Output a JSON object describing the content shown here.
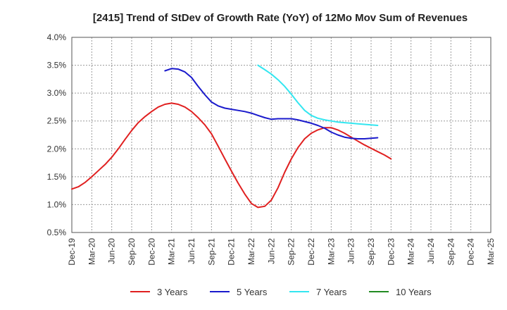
{
  "chart_data": {
    "type": "line",
    "title": "[2415]  Trend of StDev of Growth Rate (YoY) of 12Mo Mov Sum of Revenues",
    "xlabel": "",
    "ylabel": "",
    "ylim": [
      0.5,
      4.0
    ],
    "yticks": [
      "0.5%",
      "1.0%",
      "1.5%",
      "2.0%",
      "2.5%",
      "3.0%",
      "3.5%",
      "4.0%"
    ],
    "ytick_values": [
      0.5,
      1.0,
      1.5,
      2.0,
      2.5,
      3.0,
      3.5,
      4.0
    ],
    "x_categories": [
      "Dec-19",
      "Mar-20",
      "Jun-20",
      "Sep-20",
      "Dec-20",
      "Mar-21",
      "Jun-21",
      "Sep-21",
      "Dec-21",
      "Mar-22",
      "Jun-22",
      "Sep-22",
      "Dec-22",
      "Mar-23",
      "Jun-23",
      "Sep-23",
      "Dec-23",
      "Mar-24",
      "Jun-24",
      "Sep-24",
      "Dec-24",
      "Mar-25"
    ],
    "grid": true,
    "legend_position": "bottom",
    "series": [
      {
        "name": "3 Years",
        "color": "#e02020",
        "points": [
          [
            0,
            1.28
          ],
          [
            0.33,
            1.32
          ],
          [
            0.67,
            1.4
          ],
          [
            1,
            1.5
          ],
          [
            1.33,
            1.61
          ],
          [
            1.67,
            1.72
          ],
          [
            2,
            1.85
          ],
          [
            2.33,
            2.0
          ],
          [
            2.67,
            2.17
          ],
          [
            3,
            2.33
          ],
          [
            3.33,
            2.47
          ],
          [
            3.67,
            2.58
          ],
          [
            4,
            2.67
          ],
          [
            4.33,
            2.75
          ],
          [
            4.67,
            2.8
          ],
          [
            5,
            2.82
          ],
          [
            5.33,
            2.8
          ],
          [
            5.67,
            2.75
          ],
          [
            6,
            2.67
          ],
          [
            6.33,
            2.56
          ],
          [
            6.67,
            2.43
          ],
          [
            7,
            2.27
          ],
          [
            7.33,
            2.05
          ],
          [
            7.67,
            1.82
          ],
          [
            8,
            1.6
          ],
          [
            8.33,
            1.39
          ],
          [
            8.67,
            1.19
          ],
          [
            9,
            1.02
          ],
          [
            9.33,
            0.95
          ],
          [
            9.67,
            0.97
          ],
          [
            10,
            1.08
          ],
          [
            10.33,
            1.3
          ],
          [
            10.67,
            1.58
          ],
          [
            11,
            1.82
          ],
          [
            11.33,
            2.02
          ],
          [
            11.67,
            2.18
          ],
          [
            12,
            2.28
          ],
          [
            12.33,
            2.34
          ],
          [
            12.67,
            2.38
          ],
          [
            13,
            2.38
          ],
          [
            13.33,
            2.34
          ],
          [
            13.67,
            2.28
          ],
          [
            14,
            2.21
          ],
          [
            14.33,
            2.14
          ],
          [
            14.67,
            2.07
          ],
          [
            15,
            2.01
          ],
          [
            15.33,
            1.95
          ],
          [
            15.67,
            1.89
          ],
          [
            16,
            1.82
          ]
        ]
      },
      {
        "name": "5 Years",
        "color": "#1a1acc",
        "points": [
          [
            4.67,
            3.4
          ],
          [
            5,
            3.44
          ],
          [
            5.33,
            3.43
          ],
          [
            5.67,
            3.38
          ],
          [
            6,
            3.28
          ],
          [
            6.33,
            3.12
          ],
          [
            6.67,
            2.97
          ],
          [
            7,
            2.84
          ],
          [
            7.33,
            2.77
          ],
          [
            7.67,
            2.73
          ],
          [
            8,
            2.71
          ],
          [
            8.33,
            2.69
          ],
          [
            8.67,
            2.67
          ],
          [
            9,
            2.64
          ],
          [
            9.33,
            2.6
          ],
          [
            9.67,
            2.56
          ],
          [
            10,
            2.53
          ],
          [
            10.33,
            2.54
          ],
          [
            10.67,
            2.54
          ],
          [
            11,
            2.54
          ],
          [
            11.33,
            2.52
          ],
          [
            11.67,
            2.49
          ],
          [
            12,
            2.46
          ],
          [
            12.33,
            2.42
          ],
          [
            12.67,
            2.37
          ],
          [
            13,
            2.3
          ],
          [
            13.33,
            2.25
          ],
          [
            13.67,
            2.21
          ],
          [
            14,
            2.19
          ],
          [
            14.33,
            2.18
          ],
          [
            14.67,
            2.18
          ],
          [
            15,
            2.19
          ],
          [
            15.33,
            2.2
          ]
        ]
      },
      {
        "name": "7 Years",
        "color": "#33e6f0",
        "points": [
          [
            9.33,
            3.5
          ],
          [
            9.67,
            3.42
          ],
          [
            10,
            3.34
          ],
          [
            10.33,
            3.24
          ],
          [
            10.67,
            3.12
          ],
          [
            11,
            2.98
          ],
          [
            11.33,
            2.83
          ],
          [
            11.67,
            2.69
          ],
          [
            12,
            2.6
          ],
          [
            12.33,
            2.55
          ],
          [
            12.67,
            2.52
          ],
          [
            13,
            2.5
          ],
          [
            13.33,
            2.48
          ],
          [
            13.67,
            2.47
          ],
          [
            14,
            2.46
          ],
          [
            14.33,
            2.45
          ],
          [
            14.67,
            2.44
          ],
          [
            15,
            2.43
          ],
          [
            15.33,
            2.42
          ]
        ]
      },
      {
        "name": "10 Years",
        "color": "#228b22",
        "points": []
      }
    ]
  }
}
